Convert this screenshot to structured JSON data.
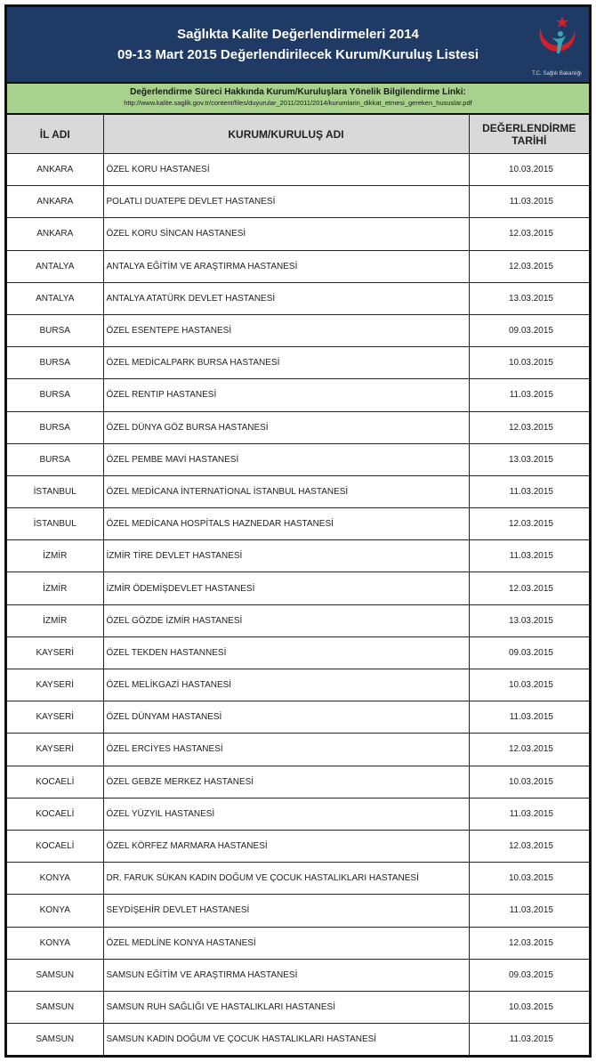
{
  "header": {
    "title_line1": "Sağlıkta Kalite Değerlendirmeleri 2014",
    "title_line2": "09-13 Mart 2015 Değerlendirilecek Kurum/Kuruluş Listesi",
    "logo_caption": "T.C. Sağlık Bakanlığı"
  },
  "info": {
    "label": "Değerlendirme Süreci Hakkında Kurum/Kuruluşlara Yönelik Bilgilendirme Linki:",
    "link": "http://www.kalite.saglik.gov.tr/content/files/duyurular_2011/2011/2014/kurumlarin_dikkat_etmesi_gereken_hususlar.pdf"
  },
  "columns": [
    "İL ADI",
    "KURUM/KURULUŞ ADI",
    "DEĞERLENDİRME TARİHİ"
  ],
  "rows": [
    [
      "ANKARA",
      "ÖZEL KORU HASTANESİ",
      "10.03.2015"
    ],
    [
      "ANKARA",
      "POLATLI DUATEPE DEVLET HASTANESİ",
      "11.03.2015"
    ],
    [
      "ANKARA",
      "ÖZEL KORU SİNCAN HASTANESİ",
      "12.03.2015"
    ],
    [
      "ANTALYA",
      "ANTALYA EĞİTİM VE ARAŞTIRMA HASTANESİ",
      "12.03.2015"
    ],
    [
      "ANTALYA",
      "ANTALYA ATATÜRK DEVLET HASTANESİ",
      "13.03.2015"
    ],
    [
      "BURSA",
      "ÖZEL ESENTEPE HASTANESİ",
      "09.03.2015"
    ],
    [
      "BURSA",
      "ÖZEL MEDİCALPARK BURSA HASTANESİ",
      "10.03.2015"
    ],
    [
      "BURSA",
      "ÖZEL RENTIP HASTANESİ",
      "11.03.2015"
    ],
    [
      "BURSA",
      "ÖZEL DÜNYA GÖZ BURSA HASTANESİ",
      "12.03.2015"
    ],
    [
      "BURSA",
      "ÖZEL PEMBE MAVİ HASTANESİ",
      "13.03.2015"
    ],
    [
      "İSTANBUL",
      "ÖZEL MEDİCANA İNTERNATİONAL İSTANBUL HASTANESİ",
      "11.03.2015"
    ],
    [
      "İSTANBUL",
      "ÖZEL MEDİCANA HOSPİTALS HAZNEDAR HASTANESİ",
      "12.03.2015"
    ],
    [
      "İZMİR",
      "İZMİR TİRE DEVLET HASTANESİ",
      "11.03.2015"
    ],
    [
      "İZMİR",
      "İZMİR ÖDEMİŞDEVLET HASTANESİ",
      "12.03.2015"
    ],
    [
      "İZMİR",
      "ÖZEL GÖZDE İZMİR HASTANESİ",
      "13.03.2015"
    ],
    [
      "KAYSERİ",
      "ÖZEL TEKDEN HASTANNESİ",
      "09.03.2015"
    ],
    [
      "KAYSERİ",
      "ÖZEL MELİKGAZİ HASTANESİ",
      "10.03.2015"
    ],
    [
      "KAYSERİ",
      "ÖZEL DÜNYAM HASTANESİ",
      "11.03.2015"
    ],
    [
      "KAYSERİ",
      "ÖZEL ERCİYES HASTANESİ",
      "12.03.2015"
    ],
    [
      "KOCAELİ",
      "ÖZEL GEBZE MERKEZ HASTANESİ",
      "10.03.2015"
    ],
    [
      "KOCAELİ",
      "ÖZEL YÜZYIL HASTANESİ",
      "11.03.2015"
    ],
    [
      "KOCAELİ",
      "ÖZEL KÖRFEZ MARMARA HASTANESİ",
      "12.03.2015"
    ],
    [
      "KONYA",
      "DR. FARUK SÜKAN KADIN DOĞUM VE ÇOCUK HASTALIKLARI HASTANESİ",
      "10.03.2015"
    ],
    [
      "KONYA",
      "SEYDİŞEHİR DEVLET HASTANESİ",
      "11.03.2015"
    ],
    [
      "KONYA",
      "ÖZEL MEDLİNE KONYA HASTANESİ",
      "12.03.2015"
    ],
    [
      "SAMSUN",
      "SAMSUN EĞİTİM VE ARAŞTIRMA HASTANESİ",
      "09.03.2015"
    ],
    [
      "SAMSUN",
      "SAMSUN RUH SAĞLIĞI VE HASTALIKLARI HASTANESİ",
      "10.03.2015"
    ],
    [
      "SAMSUN",
      "SAMSUN KADIN DOĞUM VE ÇOCUK HASTALIKLARI HASTANESİ",
      "11.03.2015"
    ]
  ],
  "colors": {
    "header_bg": "#1f3a64",
    "info_bg": "#a9d18e",
    "column_header_bg": "#d9d9d9",
    "logo_red": "#d0202e",
    "logo_teal": "#3aa8b0"
  }
}
